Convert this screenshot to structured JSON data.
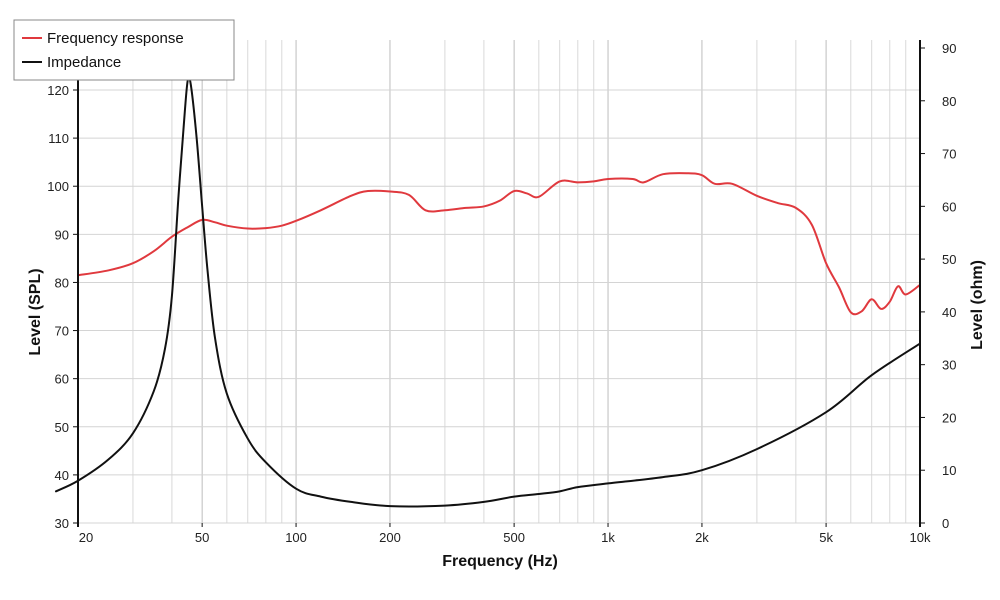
{
  "chart_data": {
    "type": "line",
    "xlabel": "Frequency (Hz)",
    "ylabel": "Level (SPL)",
    "y2label": "Level (ohm)",
    "x_scale": "log",
    "xlim": [
      20,
      10000
    ],
    "ylim": [
      30,
      120
    ],
    "y2lim": [
      0,
      90
    ],
    "grid": true,
    "legend_position": "top-left",
    "x_ticks": [
      {
        "value": 20,
        "label": "20"
      },
      {
        "value": 50,
        "label": "50"
      },
      {
        "value": 100,
        "label": "100"
      },
      {
        "value": 200,
        "label": "200"
      },
      {
        "value": 500,
        "label": "500"
      },
      {
        "value": 1000,
        "label": "1k"
      },
      {
        "value": 2000,
        "label": "2k"
      },
      {
        "value": 5000,
        "label": "5k"
      },
      {
        "value": 10000,
        "label": "10k"
      }
    ],
    "y_ticks": [
      30,
      40,
      50,
      60,
      70,
      80,
      90,
      100,
      110,
      120
    ],
    "y2_ticks": [
      0,
      10,
      20,
      30,
      40,
      50,
      60,
      70,
      80,
      90
    ],
    "series": [
      {
        "name": "Frequency response",
        "color": "#e0393e",
        "axis": "left",
        "x": [
          20,
          25,
          30,
          35,
          40,
          45,
          50,
          55,
          60,
          70,
          80,
          90,
          100,
          120,
          150,
          170,
          200,
          230,
          260,
          300,
          350,
          400,
          450,
          500,
          550,
          600,
          700,
          800,
          900,
          1000,
          1200,
          1300,
          1500,
          1800,
          2000,
          2200,
          2500,
          3000,
          3500,
          4000,
          4500,
          5000,
          5500,
          6000,
          6500,
          7000,
          7500,
          8000,
          8500,
          9000,
          10000
        ],
        "y": [
          81.5,
          82.5,
          84,
          86.5,
          89.5,
          91.5,
          93,
          92.5,
          91.8,
          91.2,
          91.3,
          91.8,
          92.8,
          95,
          98,
          99,
          98.9,
          98.2,
          95,
          95,
          95.5,
          95.8,
          97,
          99,
          98.5,
          97.8,
          101,
          100.8,
          101,
          101.5,
          101.5,
          100.8,
          102.5,
          102.7,
          102.3,
          100.5,
          100.5,
          98,
          96.5,
          95.5,
          92,
          84,
          79,
          73.8,
          74,
          76.5,
          74.5,
          76,
          79.2,
          77.5,
          79.5
        ]
      },
      {
        "name": "Impedance",
        "color": "#111111",
        "axis": "right",
        "x": [
          17,
          20,
          25,
          30,
          35,
          38,
          40,
          42,
          44,
          45,
          46,
          48,
          50,
          52,
          55,
          60,
          70,
          80,
          100,
          120,
          150,
          200,
          300,
          400,
          500,
          600,
          700,
          800,
          1000,
          1500,
          2000,
          3000,
          5000,
          7000,
          10000
        ],
        "y": [
          6,
          8,
          12,
          17,
          25,
          33,
          43,
          62,
          78,
          84,
          83,
          73,
          60,
          48,
          35,
          24.5,
          16,
          11.5,
          6.5,
          5,
          4,
          3.2,
          3.3,
          4,
          5,
          5.5,
          6,
          6.8,
          7.5,
          8.7,
          10,
          14,
          21,
          28,
          34
        ]
      }
    ]
  }
}
